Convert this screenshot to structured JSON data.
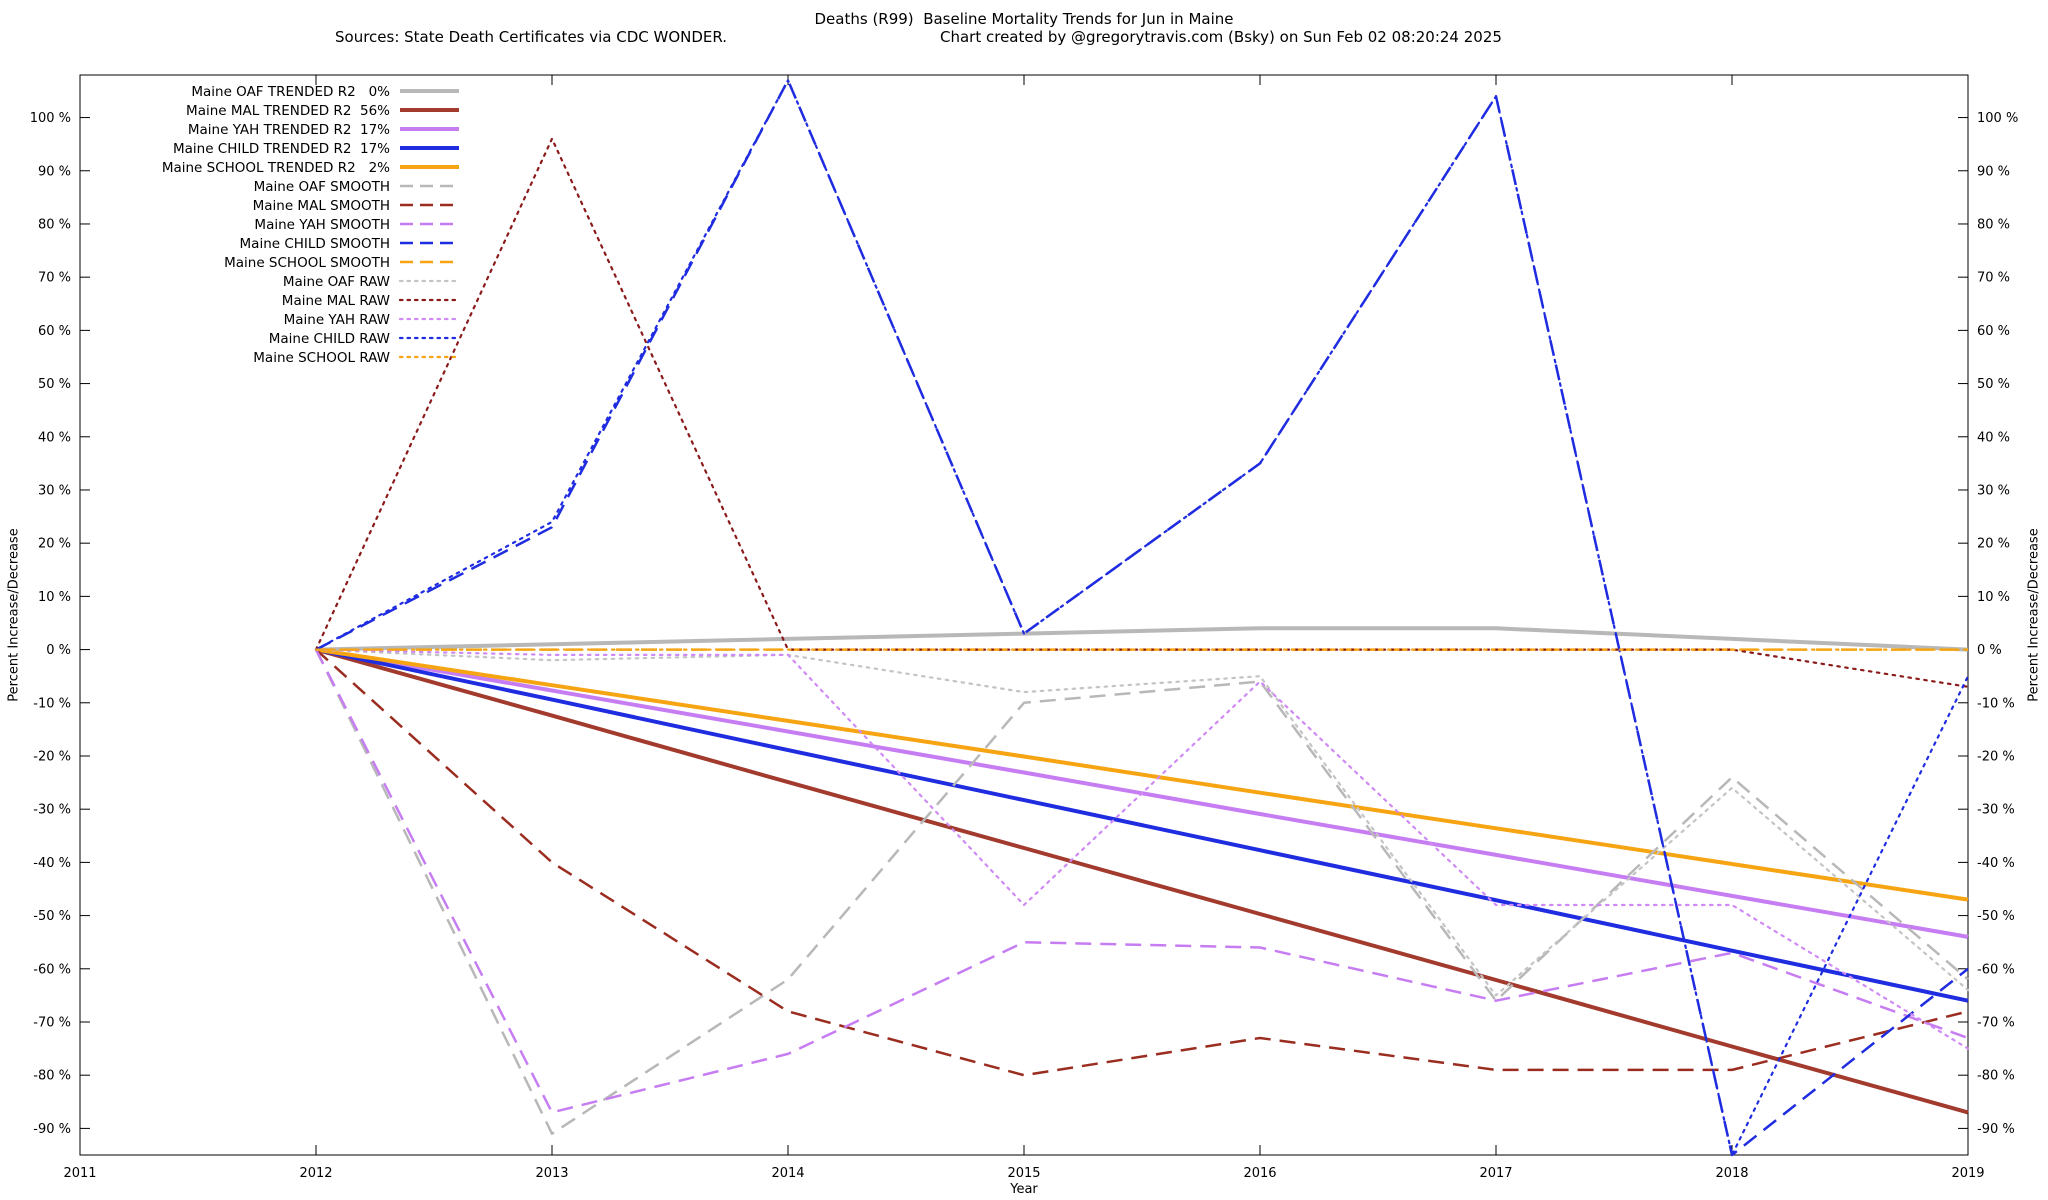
{
  "header": {
    "title": "Deaths (R99)  Baseline Mortality Trends for Jun in Maine",
    "sources": "Sources: State Death Certificates via CDC WONDER.",
    "credit": "Chart created by @gregorytravis.com (Bsky) on Sun Feb 02 08:20:24 2025"
  },
  "chart_data": {
    "type": "line",
    "title": "Deaths (R99)  Baseline Mortality Trends for Jun in Maine",
    "xlabel": "Year",
    "ylabel": "Percent Increase/Decrease",
    "ylabel_right": "Percent Increase/Decrease",
    "legend_position": "top-left",
    "grid": false,
    "xlim": [
      2011,
      2019
    ],
    "ylim": [
      -95,
      108
    ],
    "x_ticks": [
      2011,
      2012,
      2013,
      2014,
      2015,
      2016,
      2017,
      2018,
      2019
    ],
    "y_ticks": [
      -90,
      -80,
      -70,
      -60,
      -50,
      -40,
      -30,
      -20,
      -10,
      0,
      10,
      20,
      30,
      40,
      50,
      60,
      70,
      80,
      90,
      100
    ],
    "y_tick_suffix": " %",
    "years": [
      2012,
      2013,
      2014,
      2015,
      2016,
      2017,
      2018,
      2019
    ],
    "series": [
      {
        "id": "oaf-trended",
        "name": "Maine OAF TRENDED R2   0%",
        "color": "#b8b8b8",
        "style": "solid",
        "r2": "0%",
        "values": [
          0,
          1,
          2,
          3,
          4,
          4,
          2,
          0
        ]
      },
      {
        "id": "mal-trended",
        "name": "Maine MAL TRENDED R2  56%",
        "color": "#a23b2e",
        "style": "solid",
        "r2": "56%",
        "values": [
          0,
          -12.4,
          -24.9,
          -37.3,
          -49.7,
          -62.1,
          -74.6,
          -87
        ]
      },
      {
        "id": "yah-trended",
        "name": "Maine YAH TRENDED R2  17%",
        "color": "#c77df2",
        "style": "solid",
        "r2": "17%",
        "values": [
          0,
          -7.7,
          -15.4,
          -23.1,
          -30.9,
          -38.6,
          -46.3,
          -54
        ]
      },
      {
        "id": "child-trended",
        "name": "Maine CHILD TRENDED R2  17%",
        "color": "#1f2ce0",
        "style": "solid",
        "r2": "17%",
        "values": [
          0,
          -9.4,
          -18.9,
          -28.3,
          -37.7,
          -47.1,
          -56.6,
          -66
        ]
      },
      {
        "id": "school-trended",
        "name": "Maine SCHOOL TRENDED R2   2%",
        "color": "#f6a412",
        "style": "solid",
        "r2": "2%",
        "values": [
          0,
          -6.7,
          -13.4,
          -20.1,
          -26.9,
          -33.6,
          -40.3,
          -47
        ]
      },
      {
        "id": "oaf-smooth",
        "name": "Maine OAF SMOOTH",
        "color": "#b8b8b8",
        "style": "dashed",
        "values": [
          0,
          -91,
          -62,
          -10,
          -6,
          -66,
          -24,
          -62
        ]
      },
      {
        "id": "mal-smooth",
        "name": "Maine MAL SMOOTH",
        "color": "#9b2d20",
        "style": "dashed",
        "values": [
          0,
          -40,
          -68,
          -80,
          -73,
          -79,
          -79,
          -68
        ]
      },
      {
        "id": "yah-smooth",
        "name": "Maine YAH SMOOTH",
        "color": "#c77df2",
        "style": "dashed",
        "values": [
          0,
          -87,
          -76,
          -55,
          -56,
          -66,
          -57,
          -73
        ]
      },
      {
        "id": "child-smooth",
        "name": "Maine CHILD SMOOTH",
        "color": "#1f2ce0",
        "style": "dashed",
        "values": [
          0,
          23,
          107,
          3,
          35,
          104,
          -95,
          -60
        ]
      },
      {
        "id": "school-smooth",
        "name": "Maine SCHOOL SMOOTH",
        "color": "#f6a412",
        "style": "dashed",
        "values": [
          0,
          0,
          0,
          0,
          0,
          0,
          0,
          0
        ]
      },
      {
        "id": "oaf-raw",
        "name": "Maine OAF RAW",
        "color": "#c4c4c4",
        "style": "dotted",
        "values": [
          0,
          -2,
          -1,
          -8,
          -5,
          -65,
          -26,
          -64
        ]
      },
      {
        "id": "mal-raw",
        "name": "Maine MAL RAW",
        "color": "#8b1a1a",
        "style": "dotted",
        "values": [
          0,
          96,
          0,
          0,
          0,
          0,
          0,
          -7
        ]
      },
      {
        "id": "yah-raw",
        "name": "Maine YAH RAW",
        "color": "#cf8af5",
        "style": "dotted",
        "values": [
          0,
          -1,
          -1,
          -48,
          -6,
          -48,
          -48,
          -75
        ]
      },
      {
        "id": "child-raw",
        "name": "Maine CHILD RAW",
        "color": "#1f2ce0",
        "style": "dotted",
        "values": [
          0,
          24,
          107,
          3,
          35,
          104,
          -95,
          -5
        ]
      },
      {
        "id": "school-raw",
        "name": "Maine SCHOOL RAW",
        "color": "#f6a412",
        "style": "dotted",
        "values": [
          0,
          0,
          0,
          0,
          0,
          0,
          0,
          0
        ]
      }
    ]
  }
}
